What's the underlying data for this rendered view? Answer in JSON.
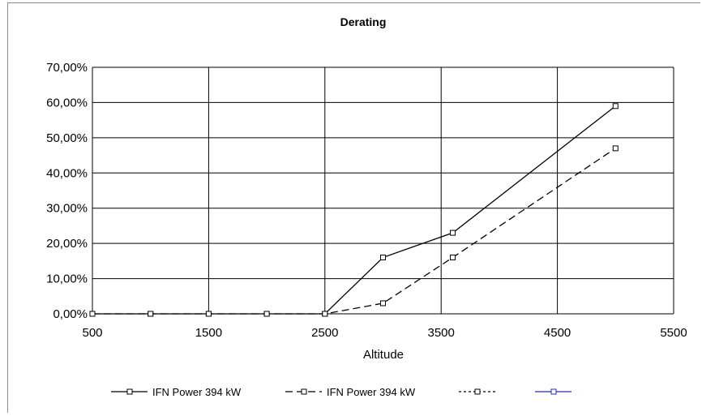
{
  "chart_data": {
    "type": "line",
    "title": "Derating",
    "xlabel": "Altitude",
    "ylabel": "",
    "xlim": [
      500,
      5500
    ],
    "ylim": [
      0,
      70
    ],
    "x_ticks": [
      500,
      1500,
      2500,
      3500,
      4500,
      5500
    ],
    "x_tick_labels": [
      "500",
      "1500",
      "2500",
      "3500",
      "4500",
      "5500"
    ],
    "y_ticks": [
      0,
      10,
      20,
      30,
      40,
      50,
      60,
      70
    ],
    "y_tick_labels": [
      "0,00%",
      "10,00%",
      "20,00%",
      "30,00%",
      "40,00%",
      "50,00%",
      "60,00%",
      "70,00%"
    ],
    "grid": true,
    "legend_position": "bottom",
    "series": [
      {
        "name": "IFN Power 394 kW",
        "style": "solid",
        "color": "#000000",
        "x": [
          500,
          1000,
          1500,
          2000,
          2500,
          3000,
          3600,
          5000
        ],
        "values": [
          0,
          0,
          0,
          0,
          0,
          16,
          23,
          59
        ]
      },
      {
        "name": "IFN Power 394 kW",
        "style": "dashed",
        "color": "#000000",
        "x": [
          500,
          1000,
          1500,
          2000,
          2500,
          3000,
          3600,
          5000
        ],
        "values": [
          0,
          0,
          0,
          0,
          0,
          3,
          16,
          47
        ]
      },
      {
        "name": "",
        "style": "dotted",
        "color": "#000000",
        "x": [],
        "values": []
      },
      {
        "name": "",
        "style": "solid",
        "color": "#2a2aa8",
        "x": [],
        "values": []
      }
    ]
  }
}
